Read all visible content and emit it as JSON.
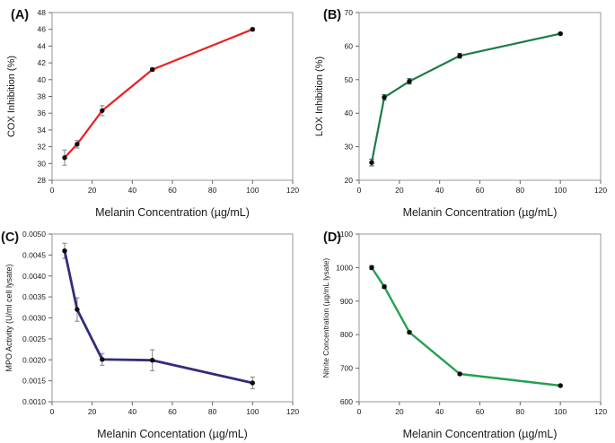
{
  "figure": {
    "background": "#ffffff",
    "border_color": "#a8a8a8",
    "tick_color": "#666666",
    "text_color": "#1a1a1a",
    "marker_color": "#0b0b0b"
  },
  "chart_data": [
    {
      "id": "A",
      "panel_label": "(A)",
      "type": "line",
      "x": [
        6.25,
        12.5,
        25,
        50,
        100
      ],
      "y": [
        30.7,
        32.3,
        36.3,
        41.2,
        46.0
      ],
      "yerr": [
        0.9,
        0.45,
        0.6,
        0.2,
        0.15
      ],
      "xlabel": "Melanin Concentration (µg/mL)",
      "ylabel": "COX Inhibition (%)",
      "xlim": [
        0,
        120
      ],
      "ylim": [
        28,
        48
      ],
      "xticks": [
        0,
        20,
        40,
        60,
        80,
        100,
        120
      ],
      "yticks": [
        28,
        30,
        32,
        34,
        36,
        38,
        40,
        42,
        44,
        46,
        48
      ],
      "grid": false,
      "legend": null,
      "line_color": "#e62320",
      "err_color": "#8c8c8c"
    },
    {
      "id": "B",
      "panel_label": "(B)",
      "type": "line",
      "x": [
        6.25,
        12.5,
        25,
        50,
        100
      ],
      "y": [
        25.3,
        44.7,
        49.5,
        57.1,
        63.7
      ],
      "yerr": [
        1.0,
        0.8,
        0.8,
        0.7,
        0.3
      ],
      "xlabel": "Melanin Concentration (µg/mL)",
      "ylabel": "LOX Inhibition (%)",
      "xlim": [
        0,
        120
      ],
      "ylim": [
        20,
        70
      ],
      "xticks": [
        0,
        20,
        40,
        60,
        80,
        100,
        120
      ],
      "yticks": [
        20,
        30,
        40,
        50,
        60,
        70
      ],
      "grid": false,
      "legend": null,
      "line_color": "#1d7b45",
      "err_color": "#1d6b3e"
    },
    {
      "id": "C",
      "panel_label": "(C)",
      "type": "line",
      "x": [
        6.25,
        12.5,
        25,
        50,
        100
      ],
      "y": [
        0.0046,
        0.0032,
        0.00201,
        0.00199,
        0.00145
      ],
      "yerr": [
        0.00018,
        0.00028,
        0.00014,
        0.00025,
        0.00014
      ],
      "xlabel": "Melanin Concentation (µg/mL)",
      "ylabel": "MPO Activity (U/ml cell lysate)",
      "xlim": [
        0,
        120
      ],
      "ylim": [
        0.001,
        0.005
      ],
      "xticks": [
        0,
        20,
        40,
        60,
        80,
        100,
        120
      ],
      "yticks": [
        0.001,
        0.0015,
        0.002,
        0.0025,
        0.003,
        0.0035,
        0.004,
        0.0045,
        0.005
      ],
      "ytick_labels": [
        "0.0010",
        "0.0015",
        "0.0020",
        "0.0025",
        "0.0030",
        "0.0035",
        "0.0040",
        "0.0045",
        "0.0050"
      ],
      "grid": false,
      "legend": null,
      "line_color": "#312d7a",
      "err_color": "#8c8c8c"
    },
    {
      "id": "D",
      "panel_label": "(D)",
      "type": "line",
      "x": [
        6.25,
        12.5,
        25,
        50,
        100
      ],
      "y": [
        1000,
        943,
        807,
        683,
        648
      ],
      "yerr": [
        6,
        5,
        4,
        3,
        3
      ],
      "xlabel": "Melanin Concentration (µg/mL)",
      "ylabel": "Nitrite Concentration (µg/mL lysate)",
      "xlim": [
        0,
        120
      ],
      "ylim": [
        600,
        1100
      ],
      "xticks": [
        0,
        20,
        40,
        60,
        80,
        100,
        120
      ],
      "yticks": [
        600,
        700,
        800,
        900,
        1000,
        1100
      ],
      "grid": false,
      "legend": null,
      "line_color": "#23a14e",
      "err_color": "#555555"
    }
  ]
}
